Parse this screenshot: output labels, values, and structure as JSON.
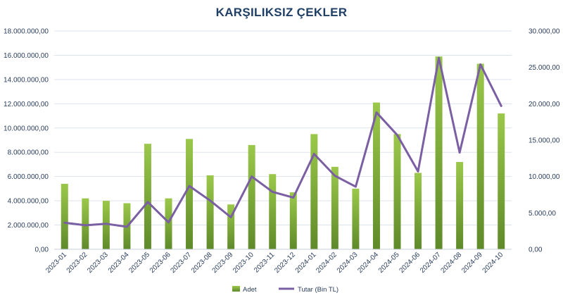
{
  "chart_data": {
    "type": "bar",
    "title": "KARŞILIKSIZ ÇEKLER",
    "categories": [
      "2023-01",
      "2023-02",
      "2023-03",
      "2023-04",
      "2023-05",
      "2023-06",
      "2023-07",
      "2023-08",
      "2023-09",
      "2023-10",
      "2023-11",
      "2023-12",
      "2024-01",
      "2024-02",
      "2024-03",
      "2024-04",
      "2024-05",
      "2024-06",
      "2024-07",
      "2024-08",
      "2024-09",
      "2024-10"
    ],
    "series": [
      {
        "name": "Adet",
        "type": "bar",
        "axis": "left",
        "values": [
          5400000,
          4200000,
          4000000,
          3800000,
          8700000,
          4200000,
          9100000,
          6100000,
          3700000,
          8600000,
          6200000,
          4700000,
          9500000,
          6800000,
          5000000,
          12100000,
          9500000,
          6300000,
          15900000,
          7200000,
          15300000,
          11200000
        ]
      },
      {
        "name": "Tutar (Bin TL)",
        "type": "line",
        "axis": "right",
        "values": [
          3650,
          3300,
          3500,
          3100,
          6500,
          3700,
          8700,
          6700,
          4400,
          10000,
          7900,
          7100,
          13100,
          10100,
          8600,
          18800,
          15700,
          10700,
          26300,
          13300,
          25400,
          19700
        ]
      }
    ],
    "y_left": {
      "min": 0,
      "max": 18000000,
      "step": 2000000,
      "tick_labels": [
        "0,00",
        "2.000.000,00",
        "4.000.000,00",
        "6.000.000,00",
        "8.000.000,00",
        "10.000.000,00",
        "12.000.000,00",
        "14.000.000,00",
        "16.000.000,00",
        "18.000.000,00"
      ]
    },
    "y_right": {
      "min": 0,
      "max": 30000,
      "step": 5000,
      "tick_labels": [
        "0,00",
        "5.000,00",
        "10.000,00",
        "15.000,00",
        "20.000,00",
        "25.000,00",
        "30.000,00"
      ]
    },
    "grid": true,
    "legend": "bottom",
    "colors": {
      "bar_top": "#9bc84a",
      "bar_bottom": "#5f8a2a",
      "line": "#7b5fa3",
      "grid": "#dde3ee",
      "title": "#1f3f66",
      "text": "#2a3d5c"
    }
  }
}
